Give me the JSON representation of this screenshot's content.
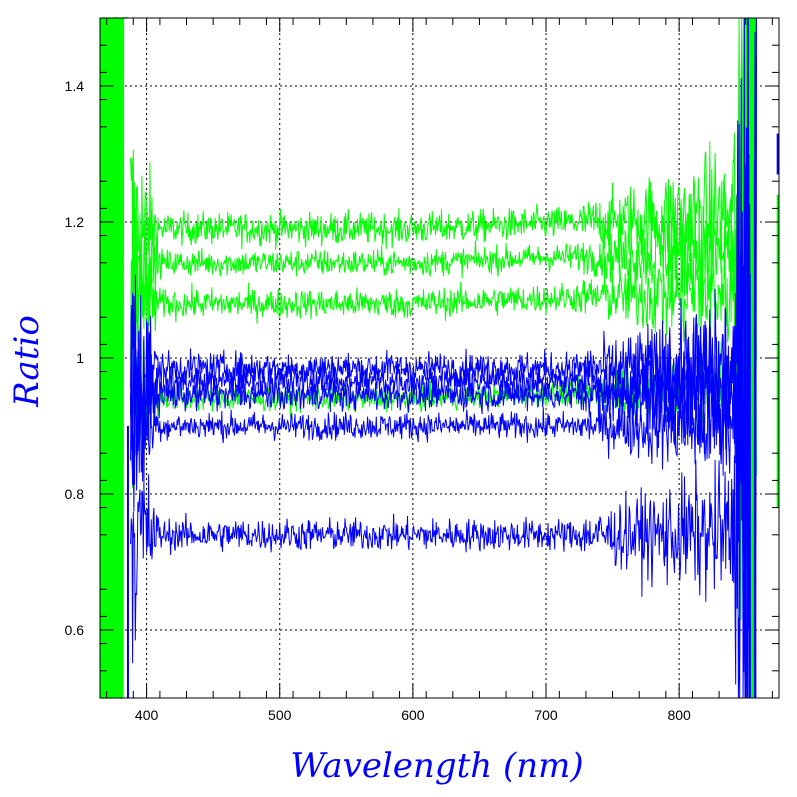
{
  "chart_data": {
    "type": "line",
    "title": "",
    "xlabel": "Wavelength (nm)",
    "ylabel": "Ratio",
    "xlim": [
      365,
      875
    ],
    "ylim": [
      0.5,
      1.5
    ],
    "x_ticks": [
      400,
      500,
      600,
      700,
      800
    ],
    "x_tick_labels": [
      "400",
      "500",
      "600",
      "700",
      "800"
    ],
    "y_ticks": [
      0.6,
      0.8,
      1.0,
      1.2,
      1.4
    ],
    "y_tick_labels": [
      "0.6",
      "0.8",
      "1",
      "1.2",
      "1.4"
    ],
    "grid": true,
    "colors": {
      "green": "#00ff00",
      "blue": "#0000ff",
      "axis_title": "#0000ff"
    },
    "series": [
      {
        "color": "green",
        "level": 1.19,
        "noise": 0.012,
        "rise": 0.02
      },
      {
        "color": "green",
        "level": 1.14,
        "noise": 0.01,
        "rise": 0.02
      },
      {
        "color": "green",
        "level": 1.08,
        "noise": 0.011,
        "rise": 0.02
      },
      {
        "color": "green",
        "level": 0.94,
        "noise": 0.009,
        "rise": 0.02
      },
      {
        "color": "blue",
        "level": 0.985,
        "noise": 0.012,
        "rise": 0.0
      },
      {
        "color": "blue",
        "level": 0.965,
        "noise": 0.012,
        "rise": 0.0
      },
      {
        "color": "blue",
        "level": 0.945,
        "noise": 0.011,
        "rise": 0.0
      },
      {
        "color": "blue",
        "level": 0.9,
        "noise": 0.01,
        "rise": 0.0
      },
      {
        "color": "blue",
        "level": 0.74,
        "noise": 0.012,
        "rise": 0.0
      }
    ]
  }
}
